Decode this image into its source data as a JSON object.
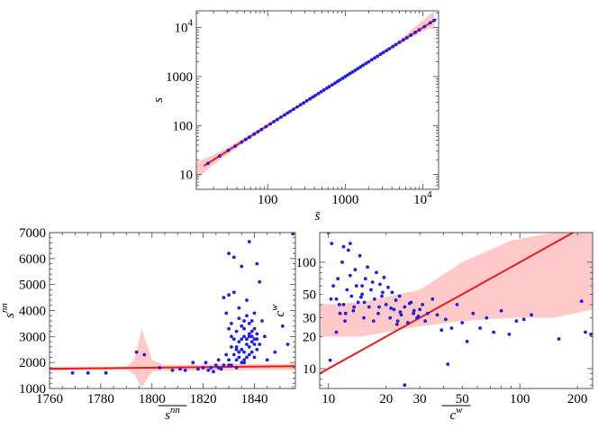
{
  "chart_data": [
    {
      "id": "top",
      "type": "scatter",
      "scale": "log-log",
      "xlim": [
        12,
        16000
      ],
      "ylim": [
        5,
        22000
      ],
      "xticks": [
        {
          "v": 100,
          "label": "100"
        },
        {
          "v": 1000,
          "label": "1000"
        },
        {
          "v": 10000,
          "label": "10",
          "sup": "4"
        }
      ],
      "yticks": [
        {
          "v": 10,
          "label": "10"
        },
        {
          "v": 100,
          "label": "100"
        },
        {
          "v": 1000,
          "label": "1000"
        },
        {
          "v": 10000,
          "label": "10",
          "sup": "4"
        }
      ],
      "xlabel": "s̄",
      "ylabel": "s",
      "fit_line": {
        "x": [
          15,
          15000
        ],
        "y": [
          15,
          15000
        ]
      },
      "band": {
        "x": [
          12,
          20,
          50,
          200,
          1000,
          5000,
          12000,
          14000
        ],
        "lower": [
          8,
          16,
          45,
          190,
          960,
          4600,
          9500,
          9500
        ],
        "upper": [
          18,
          25,
          56,
          212,
          1050,
          5500,
          18000,
          22000
        ]
      },
      "points": {
        "x": [
          17,
          24,
          31,
          38,
          46,
          52,
          58,
          67,
          75,
          83,
          95,
          108,
          120,
          133,
          148,
          165,
          180,
          195,
          215,
          240,
          265,
          290,
          320,
          350,
          380,
          410,
          450,
          490,
          530,
          580,
          620,
          680,
          740,
          800,
          860,
          930,
          1000,
          1080,
          1160,
          1250,
          1350,
          1460,
          1580,
          1700,
          1850,
          2000,
          2200,
          2400,
          2600,
          2850,
          3100,
          3400,
          3700,
          4100,
          4500,
          5000,
          5600,
          6200,
          7000,
          8000,
          9000,
          10500,
          12500,
          14000
        ],
        "y": [
          17,
          24,
          31,
          38,
          46,
          52,
          58,
          67,
          75,
          83,
          95,
          108,
          120,
          133,
          148,
          165,
          180,
          195,
          215,
          240,
          265,
          290,
          320,
          350,
          380,
          410,
          450,
          490,
          530,
          580,
          620,
          680,
          740,
          800,
          860,
          930,
          1000,
          1080,
          1160,
          1250,
          1350,
          1460,
          1580,
          1700,
          1850,
          2000,
          2200,
          2400,
          2600,
          2850,
          3100,
          3400,
          3700,
          4100,
          4500,
          5000,
          5600,
          6200,
          7000,
          8000,
          9000,
          10500,
          12500,
          14000
        ]
      },
      "colors": {
        "points": "#1f1fe6",
        "line": "#e0201c",
        "band": "#ffc9c9"
      }
    },
    {
      "id": "bottom-left",
      "type": "scatter",
      "scale": "linear",
      "xlim": [
        1760,
        1856
      ],
      "ylim": [
        1000,
        7000
      ],
      "xticks": [
        {
          "v": 1760,
          "label": "1760"
        },
        {
          "v": 1780,
          "label": "1780"
        },
        {
          "v": 1800,
          "label": "1800"
        },
        {
          "v": 1820,
          "label": "1820"
        },
        {
          "v": 1840,
          "label": "1840"
        }
      ],
      "yticks": [
        {
          "v": 1000,
          "label": "1000"
        },
        {
          "v": 2000,
          "label": "2000"
        },
        {
          "v": 3000,
          "label": "3000"
        },
        {
          "v": 4000,
          "label": "4000"
        },
        {
          "v": 5000,
          "label": "5000"
        },
        {
          "v": 6000,
          "label": "6000"
        },
        {
          "v": 7000,
          "label": "7000"
        }
      ],
      "xlabel": "s",
      "xlabel_sup": "nn",
      "ylabel": "s",
      "ylabel_sup": "nn",
      "fit_line": {
        "x": [
          1760,
          1856
        ],
        "y": [
          1760,
          1860
        ]
      },
      "band": {
        "x": [
          1760,
          1790,
          1793,
          1796,
          1800,
          1805,
          1830,
          1856
        ],
        "lower": [
          1690,
          1720,
          1550,
          1050,
          1650,
          1690,
          1700,
          1710
        ],
        "upper": [
          1840,
          1850,
          2100,
          3300,
          2100,
          1900,
          1950,
          1950
        ]
      },
      "points": {
        "x": [
          1769,
          1775,
          1782,
          1794,
          1797,
          1803,
          1808,
          1811,
          1813,
          1816,
          1818,
          1820,
          1821,
          1822,
          1823,
          1824,
          1825,
          1826,
          1826,
          1827,
          1828,
          1828,
          1829,
          1829,
          1830,
          1830,
          1830,
          1831,
          1831,
          1831,
          1832,
          1832,
          1832,
          1833,
          1833,
          1833,
          1833,
          1834,
          1834,
          1834,
          1834,
          1835,
          1835,
          1835,
          1835,
          1835,
          1836,
          1836,
          1836,
          1836,
          1836,
          1837,
          1837,
          1837,
          1837,
          1837,
          1838,
          1838,
          1838,
          1838,
          1838,
          1839,
          1839,
          1839,
          1839,
          1839,
          1840,
          1840,
          1840,
          1840,
          1841,
          1841,
          1841,
          1842,
          1842,
          1843,
          1844,
          1845,
          1848,
          1851,
          1853,
          1855,
          1830,
          1830,
          1831,
          1832,
          1833,
          1834,
          1836,
          1838,
          1840,
          1841
        ],
        "y": [
          1600,
          1600,
          1600,
          2400,
          2300,
          1800,
          1700,
          1750,
          1700,
          2000,
          1750,
          1800,
          2000,
          1700,
          1800,
          1650,
          1900,
          1800,
          2100,
          1750,
          1900,
          4500,
          3900,
          2300,
          6200,
          3300,
          2100,
          2600,
          3500,
          1900,
          2300,
          2900,
          4700,
          2500,
          3200,
          2100,
          1800,
          4100,
          2800,
          2200,
          3700,
          2500,
          3400,
          2000,
          5700,
          2900,
          2400,
          3000,
          3600,
          2100,
          3300,
          2700,
          2200,
          3800,
          4400,
          2900,
          3100,
          2300,
          3500,
          2600,
          6650,
          2800,
          3200,
          2400,
          3600,
          3000,
          2700,
          3900,
          2900,
          2200,
          3100,
          2500,
          5800,
          2700,
          5100,
          3600,
          3000,
          2100,
          2400,
          3400,
          2700,
          6950,
          1900,
          4600,
          3000,
          6050,
          2600,
          2400,
          2000,
          3000,
          3300,
          2900
        ],
        "extra_note": ""
      },
      "colors": {
        "points": "#1f1fe6",
        "line": "#e0201c",
        "band": "#ffc9c9"
      }
    },
    {
      "id": "bottom-right",
      "type": "scatter",
      "scale": "log-log",
      "xlim": [
        9,
        240
      ],
      "ylim": [
        6.5,
        190
      ],
      "xticks": [
        {
          "v": 10,
          "label": "10"
        },
        {
          "v": 20,
          "label": "20"
        },
        {
          "v": 30,
          "label": "30"
        },
        {
          "v": 50,
          "label": "50"
        },
        {
          "v": 100,
          "label": "100"
        },
        {
          "v": 200,
          "label": "200"
        }
      ],
      "yticks": [
        {
          "v": 10,
          "label": "10"
        },
        {
          "v": 20,
          "label": "20"
        },
        {
          "v": 30,
          "label": "30"
        },
        {
          "v": 50,
          "label": "50"
        },
        {
          "v": 100,
          "label": "100"
        }
      ],
      "xlabel": "c",
      "xlabel_sup": "w",
      "ylabel": "c",
      "ylabel_sup": "w",
      "fit_line": {
        "x": [
          9,
          200
        ],
        "y": [
          9,
          200
        ]
      },
      "band": {
        "x": [
          9,
          15,
          30,
          50,
          90,
          150,
          240
        ],
        "lower": [
          20,
          20,
          25,
          28,
          30,
          30,
          36
        ],
        "upper": [
          40,
          42,
          55,
          100,
          160,
          190,
          190
        ]
      },
      "points": {
        "x": [
          10,
          10.3,
          10.6,
          11,
          11.2,
          11.5,
          11.8,
          12,
          12.2,
          12.5,
          12.7,
          13,
          13.2,
          13.5,
          13.8,
          14,
          14.3,
          14.6,
          15,
          15.3,
          15.6,
          16,
          16.3,
          16.7,
          17,
          17.4,
          17.8,
          18.2,
          18.6,
          19,
          19.5,
          20,
          20.5,
          21,
          21.5,
          22,
          22.5,
          23,
          23.5,
          24,
          25,
          26,
          27,
          28,
          29,
          30,
          31,
          32,
          33,
          35,
          37,
          39,
          41,
          44,
          47,
          50,
          53,
          57,
          62,
          67,
          73,
          80,
          88,
          96,
          105,
          115,
          160,
          210,
          220,
          235,
          11,
          12.3,
          13.6,
          15.4,
          17.2,
          19.2,
          21.2,
          23.7,
          26.5,
          29.5,
          11.4,
          14.8,
          18.4,
          22.8,
          27.8,
          10.2,
          10.4,
          12,
          13,
          15,
          25,
          42
        ],
        "y": [
          190,
          45,
          60,
          22,
          70,
          33,
          100,
          40,
          28,
          55,
          130,
          75,
          48,
          35,
          85,
          60,
          42,
          115,
          50,
          30,
          70,
          90,
          38,
          55,
          65,
          45,
          80,
          33,
          62,
          48,
          72,
          40,
          58,
          30,
          52,
          36,
          44,
          28,
          48,
          32,
          38,
          27,
          42,
          35,
          30,
          36,
          40,
          28,
          33,
          45,
          32,
          23,
          29,
          24,
          40,
          27,
          18,
          33,
          24,
          30,
          22,
          35,
          21,
          28,
          29,
          32,
          19,
          43,
          22,
          21,
          45,
          33,
          38,
          42,
          28,
          52,
          37,
          34,
          41,
          31,
          40,
          47,
          38,
          26,
          33,
          12,
          150,
          140,
          150,
          60,
          7,
          11
        ],
        "extra_note": ""
      },
      "colors": {
        "points": "#1f1fe6",
        "line": "#e0201c",
        "band": "#ffc9c9"
      }
    }
  ]
}
